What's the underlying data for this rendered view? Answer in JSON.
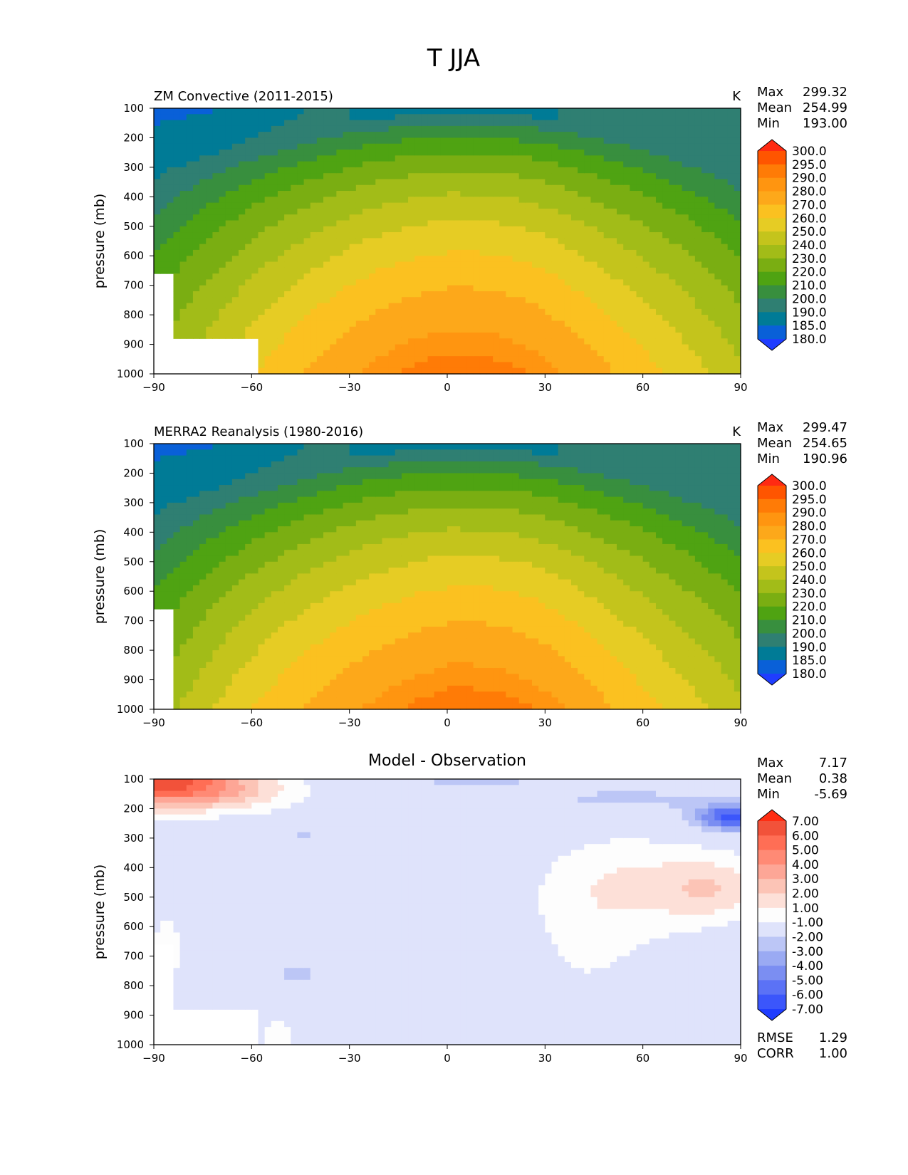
{
  "suptitle": "T JJA",
  "chart_data": [
    {
      "type": "heatmap",
      "panel": "test",
      "title": "ZM Convective (2011-2015)",
      "units": "K",
      "ylabel": "pressure (mb)",
      "xlim": [
        -90,
        90
      ],
      "ylim": [
        1000,
        100
      ],
      "xticks": [
        "−90",
        "−60",
        "−30",
        "0",
        "30",
        "60",
        "90"
      ],
      "yticks": [
        "100",
        "200",
        "300",
        "400",
        "500",
        "600",
        "700",
        "800",
        "900",
        "1000"
      ],
      "stats": [
        {
          "label": "Max",
          "value": "299.32"
        },
        {
          "label": "Mean",
          "value": "254.99"
        },
        {
          "label": "Min",
          "value": "193.00"
        }
      ],
      "colorbar": {
        "labels": [
          "300.0",
          "295.0",
          "290.0",
          "280.0",
          "270.0",
          "260.0",
          "250.0",
          "240.0",
          "230.0",
          "220.0",
          "210.0",
          "200.0",
          "190.0",
          "185.0",
          "180.0"
        ],
        "colors": [
          "#ff2a12",
          "#ff5500",
          "#ff7b06",
          "#ff9510",
          "#fda81a",
          "#fbc120",
          "#e6cc24",
          "#c4c41c",
          "#a2bc18",
          "#7aae12",
          "#4fa312",
          "#388f3e",
          "#2f7f72",
          "#007b96",
          "#0960d8",
          "#1f3dff"
        ]
      }
    },
    {
      "type": "heatmap",
      "panel": "reference",
      "title": "MERRA2 Reanalysis (1980-2016)",
      "units": "K",
      "ylabel": "pressure (mb)",
      "xlim": [
        -90,
        90
      ],
      "ylim": [
        1000,
        100
      ],
      "xticks": [
        "−90",
        "−60",
        "−30",
        "0",
        "30",
        "60",
        "90"
      ],
      "yticks": [
        "100",
        "200",
        "300",
        "400",
        "500",
        "600",
        "700",
        "800",
        "900",
        "1000"
      ],
      "stats": [
        {
          "label": "Max",
          "value": "299.47"
        },
        {
          "label": "Mean",
          "value": "254.65"
        },
        {
          "label": "Min",
          "value": "190.96"
        }
      ],
      "colorbar": {
        "labels": [
          "300.0",
          "295.0",
          "290.0",
          "280.0",
          "270.0",
          "260.0",
          "250.0",
          "240.0",
          "230.0",
          "220.0",
          "210.0",
          "200.0",
          "190.0",
          "185.0",
          "180.0"
        ],
        "colors": [
          "#ff2a12",
          "#ff5500",
          "#ff7b06",
          "#ff9510",
          "#fda81a",
          "#fbc120",
          "#e6cc24",
          "#c4c41c",
          "#a2bc18",
          "#7aae12",
          "#4fa312",
          "#388f3e",
          "#2f7f72",
          "#007b96",
          "#0960d8",
          "#1f3dff"
        ]
      }
    },
    {
      "type": "heatmap",
      "panel": "difference",
      "title": "Model - Observation",
      "units": "",
      "ylabel": "pressure (mb)",
      "xlim": [
        -90,
        90
      ],
      "ylim": [
        1000,
        100
      ],
      "xticks": [
        "−90",
        "−60",
        "−30",
        "0",
        "30",
        "60",
        "90"
      ],
      "yticks": [
        "100",
        "200",
        "300",
        "400",
        "500",
        "600",
        "700",
        "800",
        "900",
        "1000"
      ],
      "stats": [
        {
          "label": "Max",
          "value": "7.17"
        },
        {
          "label": "Mean",
          "value": "0.38"
        },
        {
          "label": "Min",
          "value": "-5.69"
        }
      ],
      "metrics": [
        {
          "label": "RMSE",
          "value": "1.29"
        },
        {
          "label": "CORR",
          "value": "1.00"
        }
      ],
      "colorbar": {
        "labels": [
          "7.00",
          "6.00",
          "5.00",
          "4.00",
          "3.00",
          "2.00",
          "1.00",
          "-1.00",
          "-2.00",
          "-3.00",
          "-4.00",
          "-5.00",
          "-6.00",
          "-7.00"
        ],
        "colors": [
          "#ff2d12",
          "#f2523a",
          "#ff6e55",
          "#ff8a75",
          "#fda696",
          "#fcc4b6",
          "#fde0d8",
          "#fdfdfd",
          "#dfe3fb",
          "#bcc6f6",
          "#9aaaf3",
          "#7b8ef2",
          "#5b72f6",
          "#3b56fb",
          "#1f3dff"
        ]
      }
    }
  ]
}
